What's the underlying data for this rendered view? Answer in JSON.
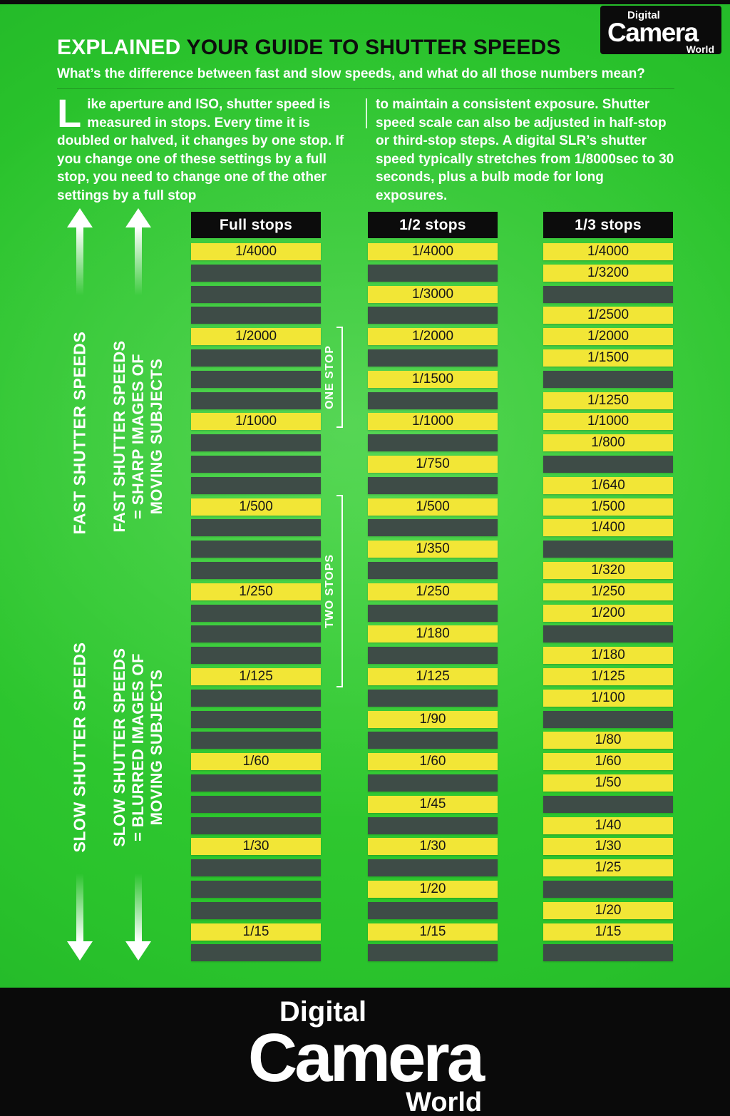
{
  "header": {
    "title_highlight": "EXPLAINED",
    "title_rest": " YOUR GUIDE TO SHUTTER SPEEDS",
    "subtitle": "What’s the difference between fast and slow speeds, and what do all those numbers mean?"
  },
  "badge": {
    "top": "Digital",
    "main": "Camera",
    "bottom": "World"
  },
  "intro": {
    "dropcap": "L",
    "col1": "ike aperture and ISO, shutter speed is measured in stops. Every time it is doubled or halved, it changes by one stop. If you change one of these settings by a full stop, you need to change one of the other settings by a full stop",
    "col2": "to maintain a consistent exposure. Shutter speed scale can also be adjusted in half-stop or third-stop steps. A digital SLR’s shutter speed typically stretches from 1/8000sec to 30 seconds, plus a bulb mode for long exposures."
  },
  "annotations": {
    "fast_label": "FAST SHUTTER SPEEDS",
    "slow_label": "SLOW SHUTTER SPEEDS",
    "fast_desc": [
      "FAST SHUTTER SPEEDS",
      "= SHARP IMAGES OF",
      "MOVING SUBJECTS"
    ],
    "slow_desc": [
      "SLOW SHUTTER SPEEDS",
      "= BLURRED IMAGES OF",
      "MOVING SUBJECTS"
    ],
    "one_stop": "ONE STOP",
    "two_stops": "TWO STOPS"
  },
  "footer_logo": {
    "top": "Digital",
    "main": "Camera",
    "bottom": "World"
  },
  "colors": {
    "background_green": "#2ac32c",
    "row_yellow": "#f2e636",
    "row_dark": "#3e4c47",
    "header_black": "#0c0c0c",
    "text_white": "#ffffff"
  },
  "chart_data": {
    "type": "table",
    "title": "Shutter speed scales",
    "columns": [
      {
        "header": "Full stops",
        "rows": [
          "1/4000",
          null,
          null,
          null,
          "1/2000",
          null,
          null,
          null,
          "1/1000",
          null,
          null,
          null,
          "1/500",
          null,
          null,
          null,
          "1/250",
          null,
          null,
          null,
          "1/125",
          null,
          null,
          null,
          "1/60",
          null,
          null,
          null,
          "1/30",
          null,
          null,
          null,
          "1/15",
          null
        ]
      },
      {
        "header": "1/2 stops",
        "rows": [
          "1/4000",
          null,
          "1/3000",
          null,
          "1/2000",
          null,
          "1/1500",
          null,
          "1/1000",
          null,
          "1/750",
          null,
          "1/500",
          null,
          "1/350",
          null,
          "1/250",
          null,
          "1/180",
          null,
          "1/125",
          null,
          "1/90",
          null,
          "1/60",
          null,
          "1/45",
          null,
          "1/30",
          null,
          "1/20",
          null,
          "1/15",
          null
        ]
      },
      {
        "header": "1/3 stops",
        "rows": [
          "1/4000",
          "1/3200",
          null,
          "1/2500",
          "1/2000",
          "1/1500",
          null,
          "1/1250",
          "1/1000",
          "1/800",
          null,
          "1/640",
          "1/500",
          "1/400",
          null,
          "1/320",
          "1/250",
          "1/200",
          null,
          "1/180",
          "1/125",
          "1/100",
          null,
          "1/80",
          "1/60",
          "1/50",
          null,
          "1/40",
          "1/30",
          "1/25",
          null,
          "1/20",
          "1/15",
          null
        ]
      }
    ]
  }
}
